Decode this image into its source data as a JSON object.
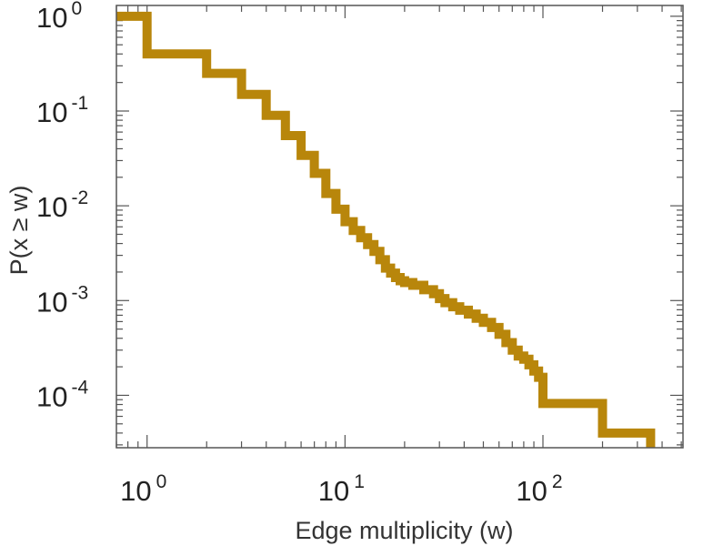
{
  "chart_data": {
    "type": "line",
    "subtype": "step-ccdf",
    "title": "",
    "xlabel": "Edge multiplicity (w)",
    "ylabel": "P(x ≥ w)",
    "xscale": "log",
    "yscale": "log",
    "xlim": [
      0.7,
      510
    ],
    "ylim": [
      2.8e-05,
      1.3
    ],
    "grid": false,
    "legend": "none",
    "color": "#b8860b",
    "x_ticks": [
      {
        "value": 1,
        "base": "10",
        "exp": "0"
      },
      {
        "value": 10,
        "base": "10",
        "exp": "1"
      },
      {
        "value": 100,
        "base": "10",
        "exp": "2"
      }
    ],
    "y_ticks": [
      {
        "value": 1,
        "base": "10",
        "exp": "0"
      },
      {
        "value": 0.1,
        "base": "10",
        "exp": "-1"
      },
      {
        "value": 0.01,
        "base": "10",
        "exp": "-2"
      },
      {
        "value": 0.001,
        "base": "10",
        "exp": "-3"
      },
      {
        "value": 0.0001,
        "base": "10",
        "exp": "-4"
      }
    ],
    "series": [
      {
        "name": "P(x ≥ w)",
        "x": [
          0.7,
          1,
          2,
          3,
          4,
          5,
          6,
          7,
          8,
          9,
          10,
          11,
          12,
          13,
          14,
          15,
          16,
          17,
          18,
          19,
          20,
          22,
          25,
          28,
          30,
          32,
          35,
          38,
          42,
          46,
          50,
          55,
          60,
          65,
          70,
          75,
          80,
          85,
          90,
          95,
          100,
          105,
          200,
          350,
          350
        ],
        "y": [
          1,
          0.4,
          0.25,
          0.15,
          0.09,
          0.055,
          0.034,
          0.022,
          0.0135,
          0.0092,
          0.0068,
          0.0055,
          0.0046,
          0.0039,
          0.0033,
          0.0027,
          0.0022,
          0.00195,
          0.00175,
          0.00162,
          0.00155,
          0.00145,
          0.0013,
          0.00118,
          0.00105,
          0.00095,
          0.00086,
          0.00079,
          0.00072,
          0.00065,
          0.00059,
          0.00052,
          0.00044,
          0.00036,
          0.0003,
          0.00026,
          0.00024,
          0.00021,
          0.00018,
          0.000155,
          8.2e-05,
          8.2e-05,
          4e-05,
          4e-05,
          2.8e-05
        ]
      }
    ]
  }
}
